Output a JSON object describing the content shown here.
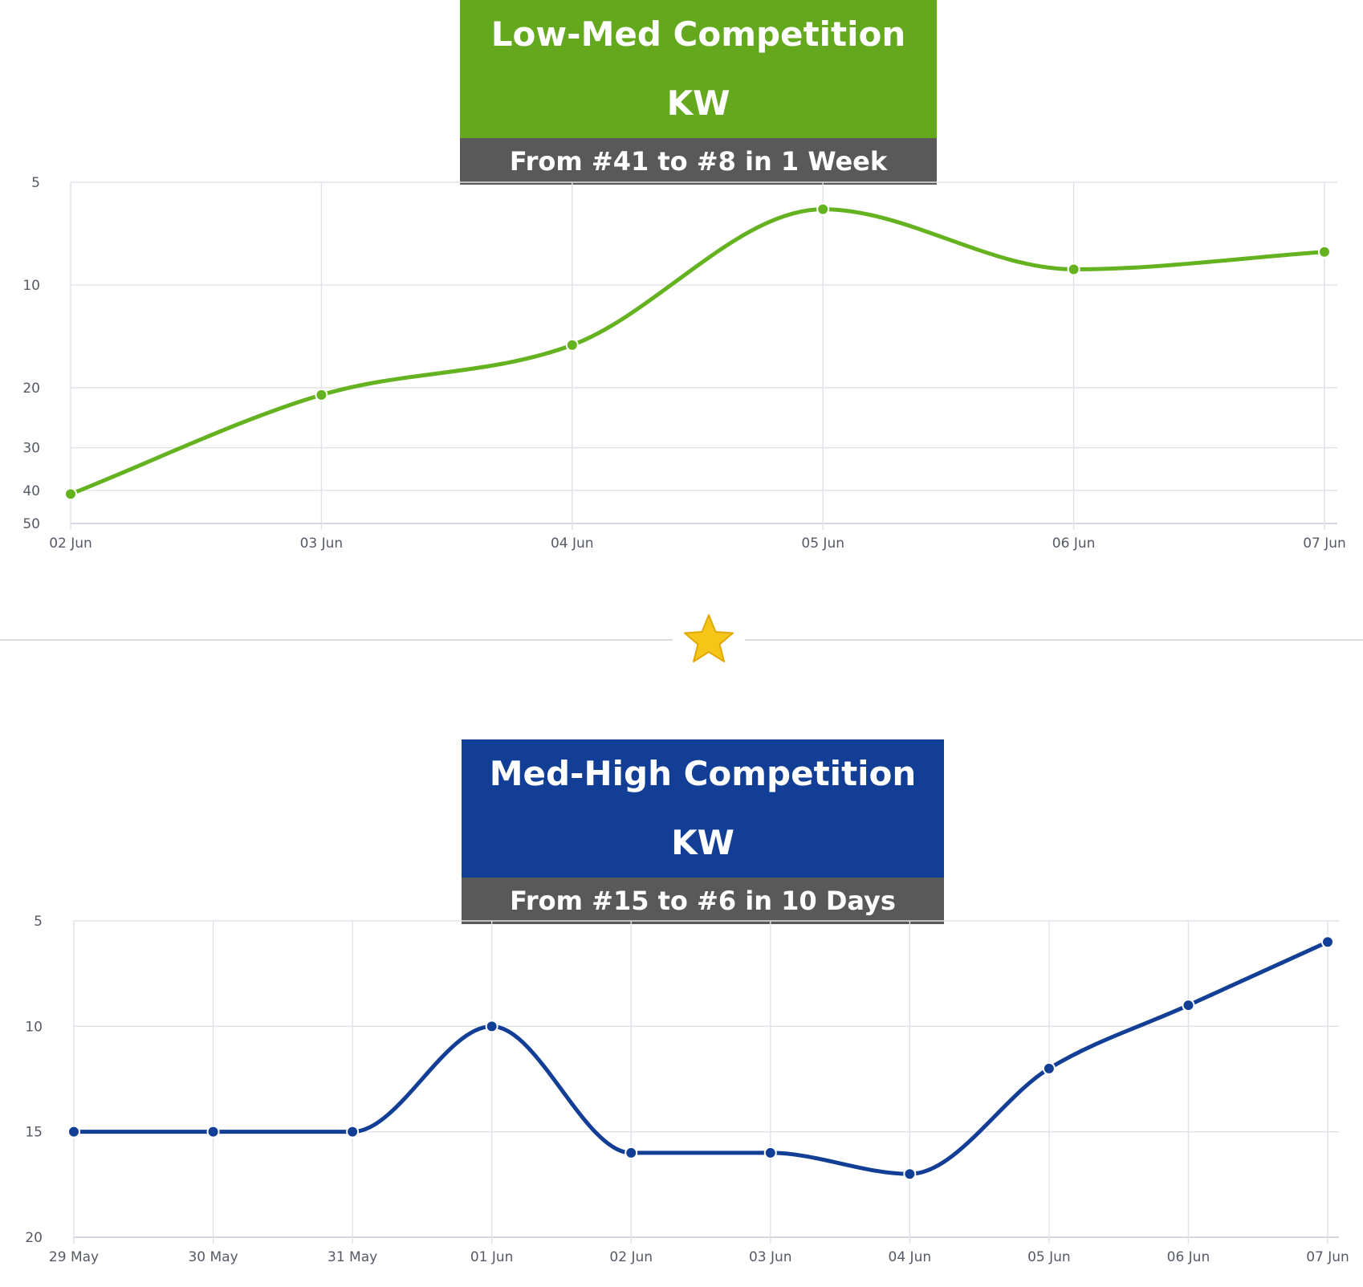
{
  "chart_data": [
    {
      "type": "line",
      "title": "Low-Med Competition KW",
      "subtitle": "From #41 to #8 in 1 Week",
      "categories": [
        "02 Jun",
        "03 Jun",
        "04 Jun",
        "05 Jun",
        "06 Jun",
        "07 Jun"
      ],
      "series": [
        {
          "values": [
            41,
            21,
            15,
            6,
            9,
            8
          ]
        }
      ],
      "yticks": [
        5,
        10,
        20,
        30,
        40,
        50
      ],
      "ylim": [
        5,
        50
      ],
      "y_inverted": true,
      "y_scale": "log",
      "grid": true,
      "color": "#64b21f"
    },
    {
      "type": "line",
      "title": "Med-High Competition KW",
      "subtitle": "From #15 to #6 in 10 Days",
      "categories": [
        "29 May",
        "30 May",
        "31 May",
        "01 Jun",
        "02 Jun",
        "03 Jun",
        "04 Jun",
        "05 Jun",
        "06 Jun",
        "07 Jun"
      ],
      "series": [
        {
          "values": [
            15,
            15,
            15,
            10,
            16,
            16,
            17,
            12,
            9,
            6
          ]
        }
      ],
      "yticks": [
        5,
        10,
        15,
        20
      ],
      "ylim": [
        5,
        20
      ],
      "y_inverted": true,
      "y_scale": "linear",
      "grid": true,
      "color": "#123f95"
    }
  ],
  "divider": {
    "icon": "star-icon",
    "color": "#f5c518"
  }
}
